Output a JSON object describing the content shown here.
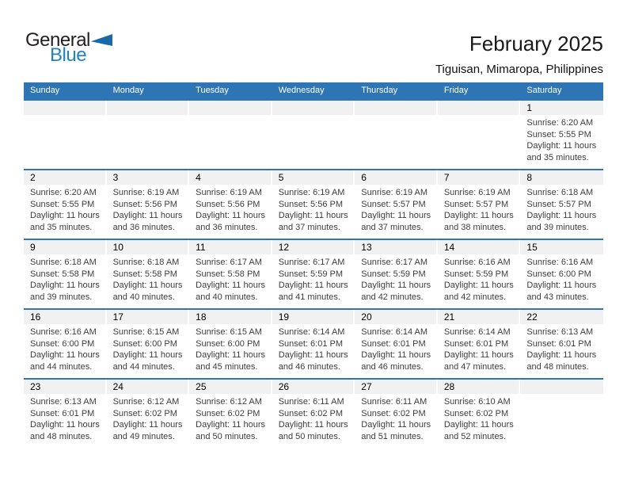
{
  "logo": {
    "text_dark": "General",
    "text_blue": "Blue"
  },
  "title": "February 2025",
  "subtitle": "Tiguisan, Mimaropa, Philippines",
  "weekdays": [
    "Sunday",
    "Monday",
    "Tuesday",
    "Wednesday",
    "Thursday",
    "Friday",
    "Saturday"
  ],
  "colors": {
    "header_blue": "#2e75b5",
    "band_gray": "#f1f1f1",
    "logo_blue": "#1e82c8",
    "logo_triangle": "#1769a8"
  },
  "weeks": [
    [
      null,
      null,
      null,
      null,
      null,
      null,
      {
        "day": "1",
        "sunrise": "Sunrise: 6:20 AM",
        "sunset": "Sunset: 5:55 PM",
        "daylight_line1": "Daylight: 11 hours",
        "daylight_line2": "and 35 minutes."
      }
    ],
    [
      {
        "day": "2",
        "sunrise": "Sunrise: 6:20 AM",
        "sunset": "Sunset: 5:55 PM",
        "daylight_line1": "Daylight: 11 hours",
        "daylight_line2": "and 35 minutes."
      },
      {
        "day": "3",
        "sunrise": "Sunrise: 6:19 AM",
        "sunset": "Sunset: 5:56 PM",
        "daylight_line1": "Daylight: 11 hours",
        "daylight_line2": "and 36 minutes."
      },
      {
        "day": "4",
        "sunrise": "Sunrise: 6:19 AM",
        "sunset": "Sunset: 5:56 PM",
        "daylight_line1": "Daylight: 11 hours",
        "daylight_line2": "and 36 minutes."
      },
      {
        "day": "5",
        "sunrise": "Sunrise: 6:19 AM",
        "sunset": "Sunset: 5:56 PM",
        "daylight_line1": "Daylight: 11 hours",
        "daylight_line2": "and 37 minutes."
      },
      {
        "day": "6",
        "sunrise": "Sunrise: 6:19 AM",
        "sunset": "Sunset: 5:57 PM",
        "daylight_line1": "Daylight: 11 hours",
        "daylight_line2": "and 37 minutes."
      },
      {
        "day": "7",
        "sunrise": "Sunrise: 6:19 AM",
        "sunset": "Sunset: 5:57 PM",
        "daylight_line1": "Daylight: 11 hours",
        "daylight_line2": "and 38 minutes."
      },
      {
        "day": "8",
        "sunrise": "Sunrise: 6:18 AM",
        "sunset": "Sunset: 5:57 PM",
        "daylight_line1": "Daylight: 11 hours",
        "daylight_line2": "and 39 minutes."
      }
    ],
    [
      {
        "day": "9",
        "sunrise": "Sunrise: 6:18 AM",
        "sunset": "Sunset: 5:58 PM",
        "daylight_line1": "Daylight: 11 hours",
        "daylight_line2": "and 39 minutes."
      },
      {
        "day": "10",
        "sunrise": "Sunrise: 6:18 AM",
        "sunset": "Sunset: 5:58 PM",
        "daylight_line1": "Daylight: 11 hours",
        "daylight_line2": "and 40 minutes."
      },
      {
        "day": "11",
        "sunrise": "Sunrise: 6:17 AM",
        "sunset": "Sunset: 5:58 PM",
        "daylight_line1": "Daylight: 11 hours",
        "daylight_line2": "and 40 minutes."
      },
      {
        "day": "12",
        "sunrise": "Sunrise: 6:17 AM",
        "sunset": "Sunset: 5:59 PM",
        "daylight_line1": "Daylight: 11 hours",
        "daylight_line2": "and 41 minutes."
      },
      {
        "day": "13",
        "sunrise": "Sunrise: 6:17 AM",
        "sunset": "Sunset: 5:59 PM",
        "daylight_line1": "Daylight: 11 hours",
        "daylight_line2": "and 42 minutes."
      },
      {
        "day": "14",
        "sunrise": "Sunrise: 6:16 AM",
        "sunset": "Sunset: 5:59 PM",
        "daylight_line1": "Daylight: 11 hours",
        "daylight_line2": "and 42 minutes."
      },
      {
        "day": "15",
        "sunrise": "Sunrise: 6:16 AM",
        "sunset": "Sunset: 6:00 PM",
        "daylight_line1": "Daylight: 11 hours",
        "daylight_line2": "and 43 minutes."
      }
    ],
    [
      {
        "day": "16",
        "sunrise": "Sunrise: 6:16 AM",
        "sunset": "Sunset: 6:00 PM",
        "daylight_line1": "Daylight: 11 hours",
        "daylight_line2": "and 44 minutes."
      },
      {
        "day": "17",
        "sunrise": "Sunrise: 6:15 AM",
        "sunset": "Sunset: 6:00 PM",
        "daylight_line1": "Daylight: 11 hours",
        "daylight_line2": "and 44 minutes."
      },
      {
        "day": "18",
        "sunrise": "Sunrise: 6:15 AM",
        "sunset": "Sunset: 6:00 PM",
        "daylight_line1": "Daylight: 11 hours",
        "daylight_line2": "and 45 minutes."
      },
      {
        "day": "19",
        "sunrise": "Sunrise: 6:14 AM",
        "sunset": "Sunset: 6:01 PM",
        "daylight_line1": "Daylight: 11 hours",
        "daylight_line2": "and 46 minutes."
      },
      {
        "day": "20",
        "sunrise": "Sunrise: 6:14 AM",
        "sunset": "Sunset: 6:01 PM",
        "daylight_line1": "Daylight: 11 hours",
        "daylight_line2": "and 46 minutes."
      },
      {
        "day": "21",
        "sunrise": "Sunrise: 6:14 AM",
        "sunset": "Sunset: 6:01 PM",
        "daylight_line1": "Daylight: 11 hours",
        "daylight_line2": "and 47 minutes."
      },
      {
        "day": "22",
        "sunrise": "Sunrise: 6:13 AM",
        "sunset": "Sunset: 6:01 PM",
        "daylight_line1": "Daylight: 11 hours",
        "daylight_line2": "and 48 minutes."
      }
    ],
    [
      {
        "day": "23",
        "sunrise": "Sunrise: 6:13 AM",
        "sunset": "Sunset: 6:01 PM",
        "daylight_line1": "Daylight: 11 hours",
        "daylight_line2": "and 48 minutes."
      },
      {
        "day": "24",
        "sunrise": "Sunrise: 6:12 AM",
        "sunset": "Sunset: 6:02 PM",
        "daylight_line1": "Daylight: 11 hours",
        "daylight_line2": "and 49 minutes."
      },
      {
        "day": "25",
        "sunrise": "Sunrise: 6:12 AM",
        "sunset": "Sunset: 6:02 PM",
        "daylight_line1": "Daylight: 11 hours",
        "daylight_line2": "and 50 minutes."
      },
      {
        "day": "26",
        "sunrise": "Sunrise: 6:11 AM",
        "sunset": "Sunset: 6:02 PM",
        "daylight_line1": "Daylight: 11 hours",
        "daylight_line2": "and 50 minutes."
      },
      {
        "day": "27",
        "sunrise": "Sunrise: 6:11 AM",
        "sunset": "Sunset: 6:02 PM",
        "daylight_line1": "Daylight: 11 hours",
        "daylight_line2": "and 51 minutes."
      },
      {
        "day": "28",
        "sunrise": "Sunrise: 6:10 AM",
        "sunset": "Sunset: 6:02 PM",
        "daylight_line1": "Daylight: 11 hours",
        "daylight_line2": "and 52 minutes."
      },
      null
    ]
  ]
}
